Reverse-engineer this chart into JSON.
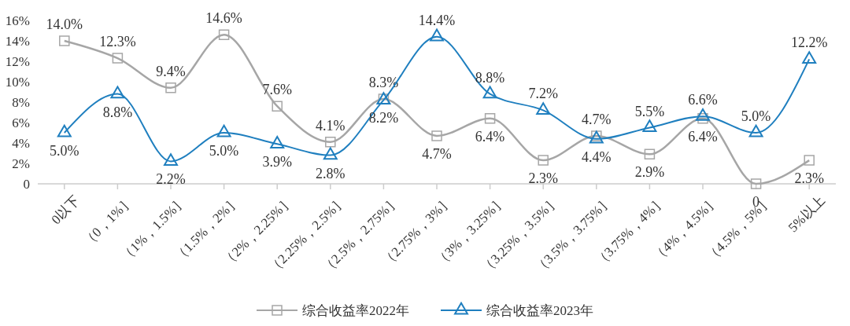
{
  "chart_data": {
    "type": "line",
    "categories": [
      "0以下",
      "（0，1%］",
      "（1%，1.5%］",
      "（1.5%，2%］",
      "（2%，2.25%］",
      "（2.25%，2.5%］",
      "（2.5%，2.75%］",
      "（2.75%，3%］",
      "（3%，3.25%］",
      "（3.25%，3.5%］",
      "（3.5%，3.75%］",
      "（3.75%，4%］",
      "（4%，4.5%］",
      "（4.5%，5%］",
      "5%以上"
    ],
    "series": [
      {
        "name": "综合收益率2022年",
        "color": "#a6a6a6",
        "marker": "square",
        "values": [
          14.0,
          12.3,
          9.4,
          14.6,
          7.6,
          4.1,
          8.3,
          4.7,
          6.4,
          2.3,
          4.7,
          2.9,
          6.4,
          0,
          2.3
        ],
        "value_labels": [
          "14.0%",
          "12.3%",
          "9.4%",
          "14.6%",
          "7.6%",
          "4.1%",
          "8.3%",
          "4.7%",
          "6.4%",
          "2.3%",
          "4.7%",
          "2.9%",
          "6.4%",
          "0",
          "2.3%"
        ]
      },
      {
        "name": "综合收益率2023年",
        "color": "#1f7fbf",
        "marker": "triangle",
        "values": [
          5.0,
          8.8,
          2.2,
          5.0,
          3.9,
          2.8,
          8.2,
          14.4,
          8.8,
          7.2,
          4.4,
          5.5,
          6.6,
          5.0,
          12.2
        ],
        "value_labels": [
          "5.0%",
          "8.8%",
          "2.2%",
          "5.0%",
          "3.9%",
          "2.8%",
          "8.2%",
          "14.4%",
          "8.8%",
          "7.2%",
          "4.4%",
          "5.5%",
          "6.6%",
          "5.0%",
          "12.2%"
        ]
      }
    ],
    "ylim": [
      0,
      16
    ],
    "yticks": [
      0,
      {
        "value": 2,
        "label": "2%"
      },
      {
        "value": 4,
        "label": "4%"
      },
      {
        "value": 6,
        "label": "6%"
      },
      {
        "value": 8,
        "label": "8%"
      },
      {
        "value": 10,
        "label": "10%"
      },
      {
        "value": 12,
        "label": "12%"
      },
      {
        "value": 14,
        "label": "14%"
      },
      {
        "value": 16,
        "label": "16%"
      }
    ],
    "grid": false,
    "legend": "bottom"
  }
}
